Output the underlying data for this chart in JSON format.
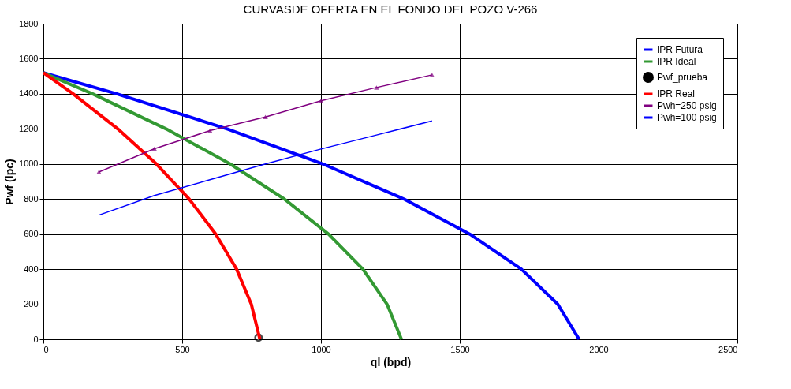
{
  "chart_data": {
    "type": "line",
    "title": "CURVASDE OFERTA  EN EL FONDO DEL POZO V-266",
    "xlabel": "ql (bpd)",
    "ylabel": "Pwf (lpc)",
    "xlim": [
      0,
      2500
    ],
    "xticks": [
      0,
      500,
      1000,
      1500,
      2000,
      2500
    ],
    "ylim": [
      0,
      1800
    ],
    "yticks": [
      0,
      200,
      400,
      600,
      800,
      1000,
      1200,
      1400,
      1600,
      1800
    ],
    "grid": true,
    "legend": "top right",
    "line_style": "solid",
    "series": [
      {
        "name": "IPR Futura",
        "color": "#0000ff",
        "marker": "none",
        "x": [
          0,
          264,
          662,
          1007,
          1299,
          1536,
          1722,
          1853,
          1930
        ],
        "values": [
          1520,
          1400,
          1200,
          1000,
          800,
          600,
          400,
          200,
          0
        ]
      },
      {
        "name": "IPR Ideal",
        "color": "#339933",
        "marker": "none",
        "x": [
          0,
          177,
          442,
          673,
          868,
          1027,
          1151,
          1238,
          1290
        ],
        "values": [
          1520,
          1400,
          1200,
          1000,
          800,
          600,
          400,
          200,
          0
        ]
      },
      {
        "name": "Pwf_prueba",
        "color": "#000000",
        "type": "scatter",
        "marker": "circle",
        "x": [
          775
        ],
        "values": [
          10
        ]
      },
      {
        "name": "IPR Real",
        "color": "#ff0000",
        "marker": "none",
        "x": [
          0,
          107,
          268,
          407,
          525,
          621,
          696,
          749,
          780
        ],
        "values": [
          1520,
          1400,
          1200,
          1000,
          800,
          600,
          400,
          200,
          0
        ]
      },
      {
        "name": "Pwh=250 psig",
        "color": "#800080",
        "marker": "triangle",
        "x": [
          200,
          400,
          600,
          800,
          1000,
          1200,
          1400
        ],
        "values": [
          954,
          1087,
          1190,
          1268,
          1360,
          1436,
          1508
        ]
      },
      {
        "name": "Pwh=100 psig",
        "color": "#0000ff",
        "marker": "none",
        "x": [
          200,
          400,
          600,
          800,
          1000,
          1200,
          1400
        ],
        "values": [
          708,
          820,
          910,
          1000,
          1085,
          1165,
          1245
        ]
      }
    ]
  }
}
